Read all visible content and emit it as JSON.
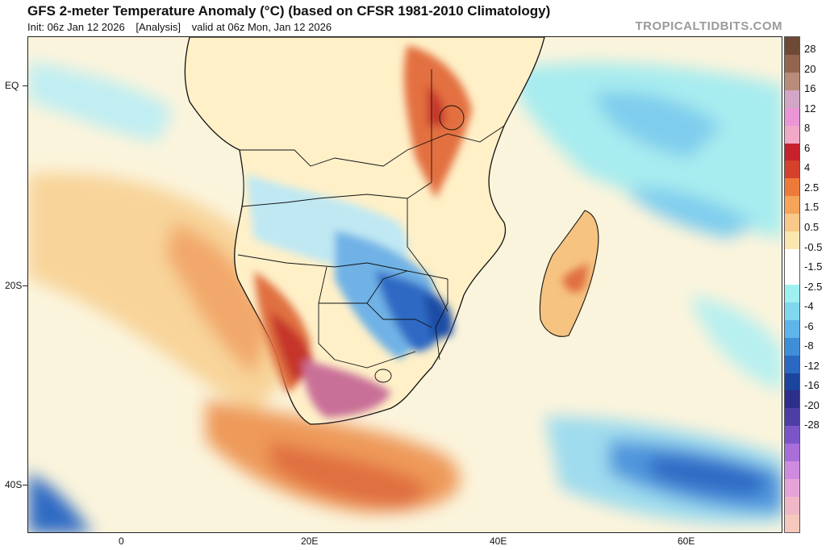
{
  "header": {
    "title": "GFS 2-meter Temperature Anomaly (°C) (based on CFSR 1981-2010 Climatology)",
    "init": "Init: 06z Jan 12 2026",
    "analysis": "[Analysis]",
    "valid": "valid at 06z Mon, Jan 12 2026",
    "credit": "TROPICALTIDBITS.COM"
  },
  "map": {
    "lat_labels": [
      "EQ",
      "20S",
      "40S"
    ],
    "lon_labels": [
      "0",
      "20E",
      "40E",
      "60E"
    ],
    "region": "Southern Africa and surrounding oceans"
  },
  "colorbar": {
    "labels": [
      "28",
      "20",
      "16",
      "12",
      "8",
      "6",
      "4",
      "2.5",
      "1.5",
      "0.5",
      "-0.5",
      "-1.5",
      "-2.5",
      "-4",
      "-6",
      "-8",
      "-12",
      "-16",
      "-20",
      "-28"
    ],
    "colors": [
      "#6e4a36",
      "#94654e",
      "#b98b79",
      "#d3a6c6",
      "#ea96d6",
      "#f1a9c8",
      "#c7212d",
      "#d4412d",
      "#ee7a3a",
      "#f5a45a",
      "#f8c98a",
      "#fbe6b0",
      "#ffffff",
      "#ffffff",
      "#9ff1f1",
      "#7fd8f0",
      "#5fb4ea",
      "#3f8ed8",
      "#2a68c2",
      "#1b449e",
      "#2d2f8a",
      "#4d3ea6",
      "#7a55c8",
      "#a96ed8",
      "#cf8bdf",
      "#e6a3d8",
      "#f0b7c7",
      "#f5c9be"
    ]
  }
}
